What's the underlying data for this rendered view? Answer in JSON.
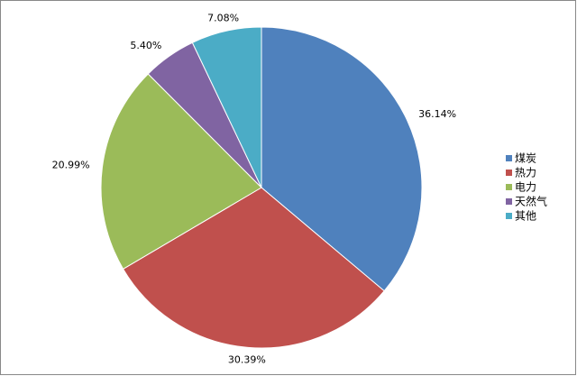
{
  "chart_data": {
    "type": "pie",
    "categories": [
      "煤炭",
      "热力",
      "电力",
      "天然气",
      "其他"
    ],
    "values": [
      36.14,
      30.39,
      20.99,
      5.4,
      7.08
    ],
    "value_labels": [
      "36.14%",
      "30.39%",
      "20.99%",
      "5.40%",
      "7.08%"
    ],
    "colors": [
      "#4f81bd",
      "#c0504d",
      "#9bbb59",
      "#8064a2",
      "#4bacc6"
    ],
    "legend": "right"
  }
}
